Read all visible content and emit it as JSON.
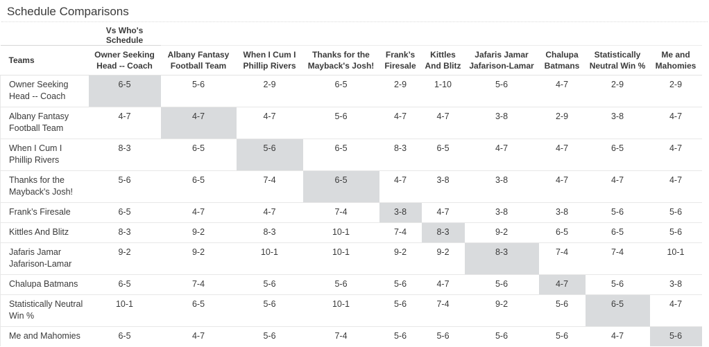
{
  "page": {
    "title": "Schedule Comparisons"
  },
  "table": {
    "group_header": "Vs Who's Schedule",
    "teams_header": "Teams",
    "columns": [
      "Owner Seeking Head -- Coach",
      "Albany Fantasy Football Team",
      "When I Cum I Phillip Rivers",
      "Thanks for the Mayback's Josh!",
      "Frank’s Firesale",
      "Kittles And Blitz",
      "Jafaris Jamar Jafarison-Lamar",
      "Chalupa Batmans",
      "Statistically Neutral Win %",
      "Me and Mahomies"
    ],
    "rows": [
      {
        "team": "Owner Seeking Head -- Coach",
        "records": [
          "6-5",
          "5-6",
          "2-9",
          "6-5",
          "2-9",
          "1-10",
          "5-6",
          "4-7",
          "2-9",
          "2-9"
        ],
        "highlight_index": 0
      },
      {
        "team": "Albany Fantasy Football Team",
        "records": [
          "4-7",
          "4-7",
          "4-7",
          "5-6",
          "4-7",
          "4-7",
          "3-8",
          "2-9",
          "3-8",
          "4-7"
        ],
        "highlight_index": 1
      },
      {
        "team": "When I Cum I Phillip Rivers",
        "records": [
          "8-3",
          "6-5",
          "5-6",
          "6-5",
          "8-3",
          "6-5",
          "4-7",
          "4-7",
          "6-5",
          "4-7"
        ],
        "highlight_index": 2
      },
      {
        "team": "Thanks for the Mayback's Josh!",
        "records": [
          "5-6",
          "6-5",
          "7-4",
          "6-5",
          "4-7",
          "3-8",
          "3-8",
          "4-7",
          "4-7",
          "4-7"
        ],
        "highlight_index": 3
      },
      {
        "team": "Frank’s Firesale",
        "records": [
          "6-5",
          "4-7",
          "4-7",
          "7-4",
          "3-8",
          "4-7",
          "3-8",
          "3-8",
          "5-6",
          "5-6"
        ],
        "highlight_index": 4
      },
      {
        "team": "Kittles And Blitz",
        "records": [
          "8-3",
          "9-2",
          "8-3",
          "10-1",
          "7-4",
          "8-3",
          "9-2",
          "6-5",
          "6-5",
          "5-6"
        ],
        "highlight_index": 5
      },
      {
        "team": "Jafaris Jamar Jafarison-Lamar",
        "records": [
          "9-2",
          "9-2",
          "10-1",
          "10-1",
          "9-2",
          "9-2",
          "8-3",
          "7-4",
          "7-4",
          "10-1"
        ],
        "highlight_index": 6
      },
      {
        "team": "Chalupa Batmans",
        "records": [
          "6-5",
          "7-4",
          "5-6",
          "5-6",
          "5-6",
          "4-7",
          "5-6",
          "4-7",
          "5-6",
          "3-8"
        ],
        "highlight_index": 7
      },
      {
        "team": "Statistically Neutral Win %",
        "records": [
          "10-1",
          "6-5",
          "5-6",
          "10-1",
          "5-6",
          "7-4",
          "9-2",
          "5-6",
          "6-5",
          "4-7"
        ],
        "highlight_index": 8
      },
      {
        "team": "Me and Mahomies",
        "records": [
          "6-5",
          "4-7",
          "5-6",
          "7-4",
          "5-6",
          "5-6",
          "5-6",
          "5-6",
          "4-7",
          "5-6"
        ],
        "highlight_index": 9
      }
    ],
    "colors": {
      "highlight_bg": "#d9dbdd",
      "row_border": "#e7e7e7",
      "header_underline": "#d6d6d6",
      "text": "#3a3a3a"
    }
  }
}
